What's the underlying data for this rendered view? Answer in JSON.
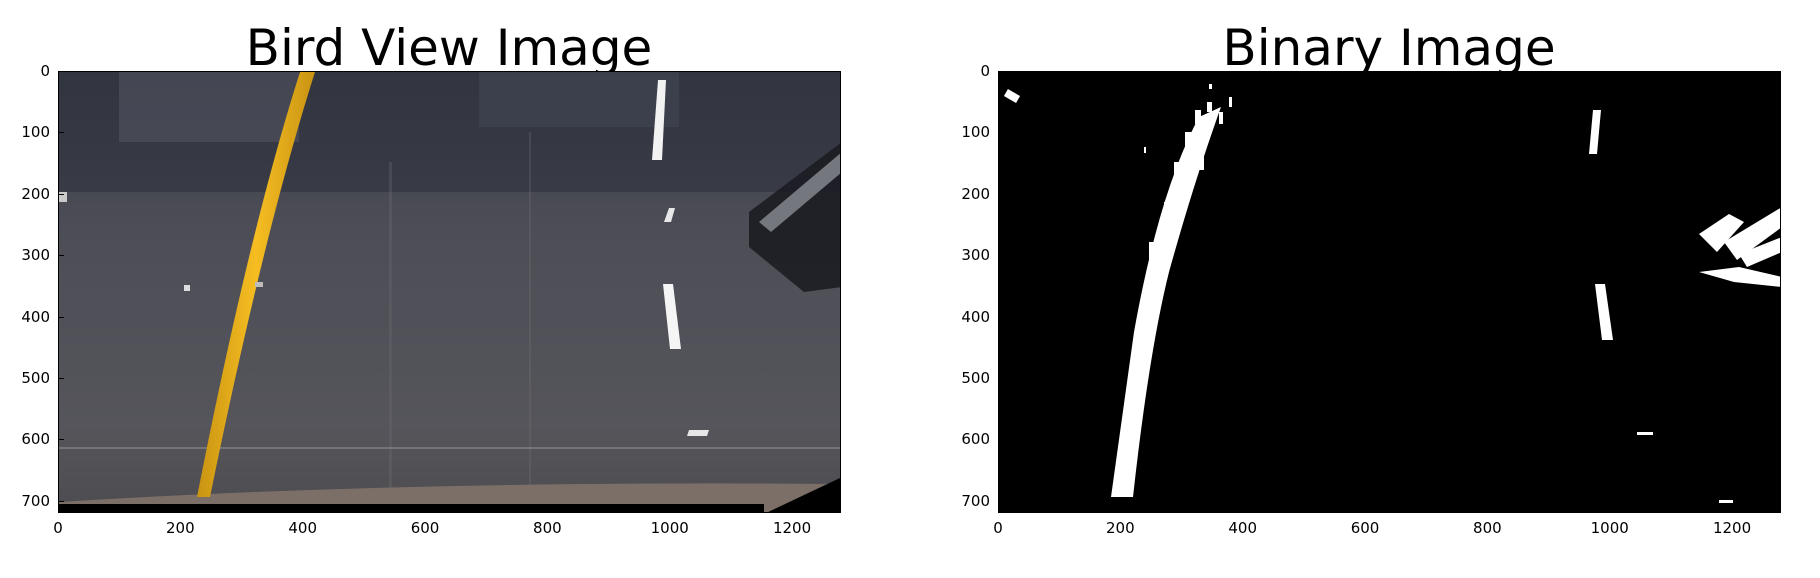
{
  "panels": [
    {
      "id": "bird-view",
      "title": "Bird View Image",
      "y_ticks": [
        "0",
        "100",
        "200",
        "300",
        "400",
        "500",
        "600",
        "700"
      ],
      "x_ticks": [
        "0",
        "200",
        "400",
        "600",
        "800",
        "1000",
        "1200"
      ]
    },
    {
      "id": "binary",
      "title": "Binary Image",
      "y_ticks": [
        "0",
        "100",
        "200",
        "300",
        "400",
        "500",
        "600",
        "700"
      ],
      "x_ticks": [
        "0",
        "200",
        "400",
        "600",
        "800",
        "1000",
        "1200"
      ]
    }
  ],
  "image_extent": {
    "x": [
      0,
      1280
    ],
    "y": [
      720,
      0
    ]
  },
  "colors": {
    "road": "#55555c",
    "yellow_line": "#f2b516",
    "white_line": "#f5f5f5",
    "binary_bg": "#000000",
    "binary_fg": "#ffffff"
  }
}
